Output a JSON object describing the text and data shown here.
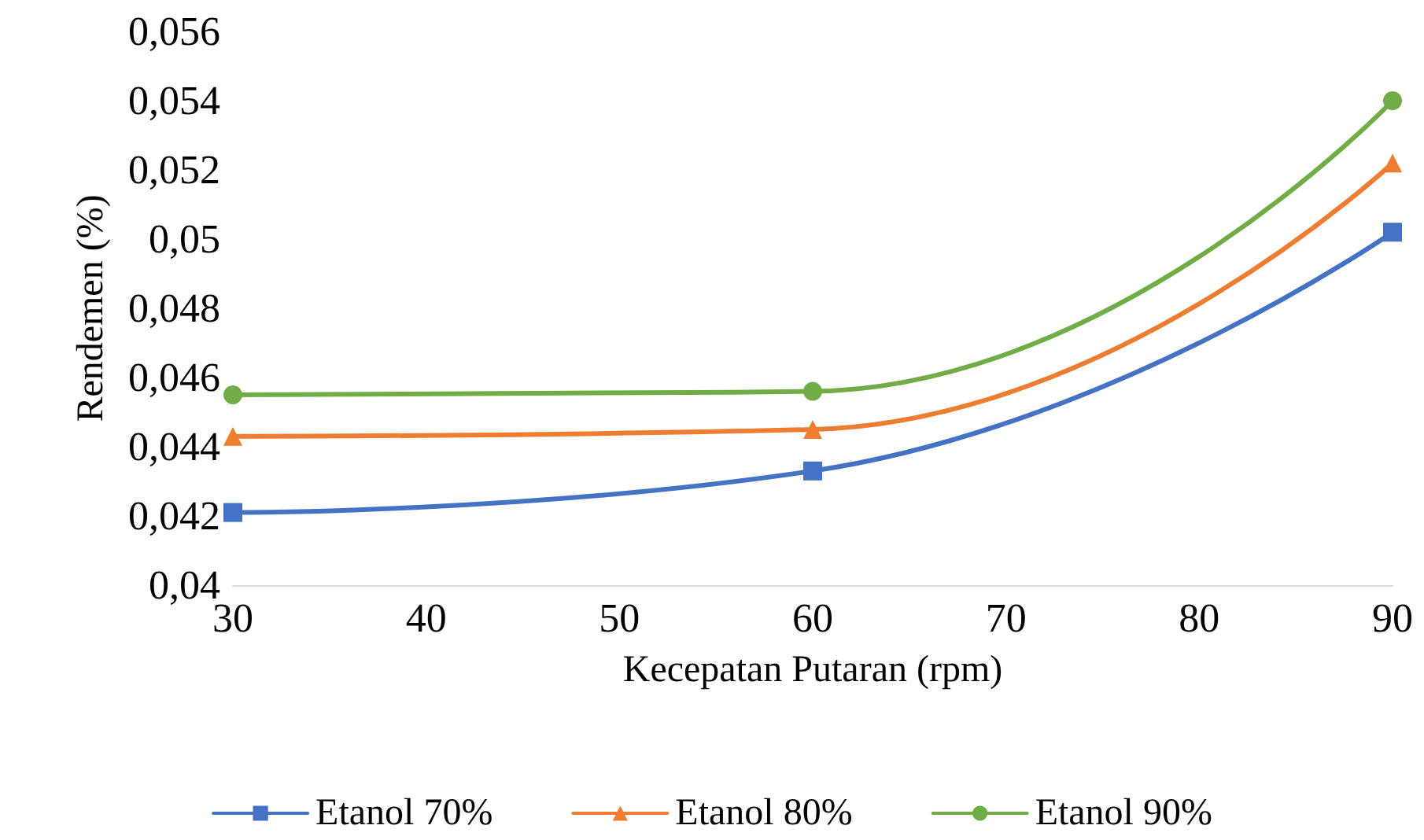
{
  "chart_data": {
    "type": "line",
    "xlabel": "Kecepatan Putaran (rpm)",
    "ylabel": "Rendemen (%)",
    "x": [
      30,
      60,
      90
    ],
    "series": [
      {
        "name": "Etanol 70%",
        "color": "#4472c4",
        "marker": "square",
        "values": [
          0.0421,
          0.0433,
          0.0502
        ]
      },
      {
        "name": "Etanol 80%",
        "color": "#ed7d31",
        "marker": "triangle",
        "values": [
          0.0443,
          0.0445,
          0.0522
        ]
      },
      {
        "name": "Etanol 90%",
        "color": "#70ad47",
        "marker": "circle",
        "values": [
          0.0455,
          0.0456,
          0.054
        ]
      }
    ],
    "xlim": [
      30,
      90
    ],
    "xticks": [
      30,
      40,
      50,
      60,
      70,
      80,
      90
    ],
    "ylim": [
      0.04,
      0.056
    ],
    "yticks": [
      {
        "value": 0.04,
        "label": "0,04"
      },
      {
        "value": 0.042,
        "label": "0,042"
      },
      {
        "value": 0.044,
        "label": "0,044"
      },
      {
        "value": 0.046,
        "label": "0,046"
      },
      {
        "value": 0.048,
        "label": "0,048"
      },
      {
        "value": 0.05,
        "label": "0,05"
      },
      {
        "value": 0.052,
        "label": "0,052"
      },
      {
        "value": 0.054,
        "label": "0,054"
      },
      {
        "value": 0.056,
        "label": "0,056"
      }
    ],
    "grid": false,
    "legend": "bottom",
    "line_style": "solid"
  }
}
